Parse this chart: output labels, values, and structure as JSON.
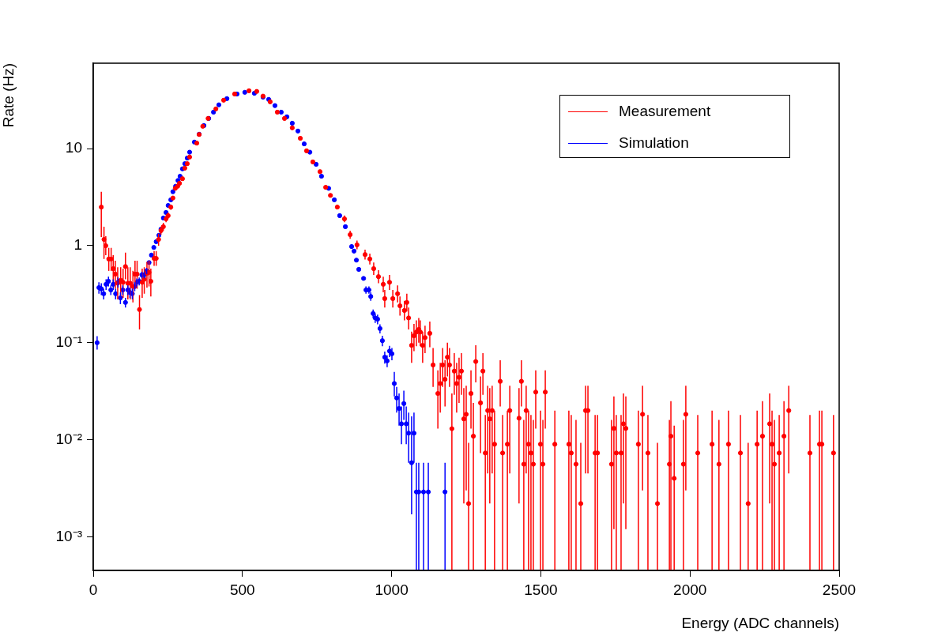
{
  "chart_data": {
    "type": "scatter",
    "xlabel": "Energy (ADC channels)",
    "ylabel": "Rate (Hz)",
    "log": "y",
    "grid": false,
    "legend": "top right",
    "marker": "circle",
    "xlim": [
      0,
      2500
    ],
    "xticks": [
      0,
      500,
      1000,
      1500,
      2000,
      2500
    ],
    "ylim": [
      0.00045,
      76
    ],
    "yticks": [
      {
        "value": 0.001,
        "label": "10⁻³"
      },
      {
        "value": 0.01,
        "label": "10⁻²"
      },
      {
        "value": 0.1,
        "label": "10⁻¹"
      },
      1,
      10
    ],
    "series": [
      {
        "name": "Measurement",
        "color": "#ff0000",
        "x": [
          27,
          36,
          42,
          52,
          60,
          67,
          74,
          82,
          92,
          100,
          108,
          116,
          124,
          133,
          140,
          147,
          155,
          164,
          171,
          180,
          187,
          193,
          204,
          211,
          219,
          227,
          235,
          244,
          251,
          260,
          267,
          275,
          283,
          289,
          299,
          307,
          315,
          323,
          347,
          355,
          367,
          385,
          411,
          437,
          474,
          522,
          548,
          569,
          593,
          617,
          641,
          667,
          694,
          715,
          736,
          760,
          779,
          795,
          818,
          842,
          861,
          884,
          911,
          927,
          940,
          956,
          972,
          977,
          993,
          1004,
          1020,
          1028,
          1043,
          1051,
          1057,
          1067,
          1075,
          1083,
          1091,
          1096,
          1104,
          1112,
          1128,
          1139,
          1155,
          1163,
          1171,
          1179,
          1187,
          1194,
          1202,
          1210,
          1218,
          1226,
          1234,
          1242,
          1250,
          1258,
          1266,
          1274,
          1282,
          1298,
          1306,
          1314,
          1322,
          1329,
          1337,
          1345,
          1364,
          1372,
          1388,
          1396,
          1427,
          1435,
          1443,
          1451,
          1459,
          1467,
          1475,
          1483,
          1499,
          1507,
          1515,
          1547,
          1594,
          1602,
          1618,
          1634,
          1650,
          1658,
          1682,
          1690,
          1737,
          1745,
          1753,
          1769,
          1777,
          1785,
          1827,
          1841,
          1859,
          1891,
          1931,
          1936,
          1947,
          1978,
          1986,
          2026,
          2074,
          2097,
          2129,
          2169,
          2195,
          2225,
          2243,
          2267,
          2275,
          2283,
          2299,
          2315,
          2331,
          2402,
          2434,
          2442,
          2481
        ],
        "values": [
          2.5,
          1.16,
          1.0,
          0.73,
          0.73,
          0.58,
          0.51,
          0.41,
          0.44,
          0.42,
          0.61,
          0.41,
          0.41,
          0.38,
          0.51,
          0.51,
          0.22,
          0.42,
          0.45,
          0.52,
          0.53,
          0.43,
          0.74,
          0.74,
          1.16,
          1.43,
          1.57,
          1.89,
          2.04,
          2.5,
          3.1,
          3.9,
          4.1,
          4.4,
          4.9,
          6.3,
          7.0,
          8.2,
          11.4,
          14,
          17,
          20.5,
          25.7,
          31.6,
          36.6,
          39.5,
          38.9,
          34.8,
          30.4,
          23.8,
          20.5,
          16.4,
          12.8,
          9.5,
          7.3,
          5.8,
          4.0,
          3.3,
          2.5,
          1.89,
          1.3,
          1.02,
          0.81,
          0.73,
          0.58,
          0.48,
          0.4,
          0.285,
          0.42,
          0.285,
          0.32,
          0.24,
          0.215,
          0.26,
          0.18,
          0.094,
          0.118,
          0.129,
          0.137,
          0.129,
          0.094,
          0.113,
          0.125,
          0.059,
          0.03,
          0.038,
          0.059,
          0.042,
          0.071,
          0.059,
          0.013,
          0.051,
          0.038,
          0.044,
          0.051,
          0.0164,
          0.0183,
          0.0022,
          0.03,
          0.0109,
          0.064,
          0.024,
          0.051,
          0.0073,
          0.02,
          0.0164,
          0.02,
          0.009,
          0.04,
          0.0073,
          0.009,
          0.02,
          0.0167,
          0.04,
          0.0056,
          0.02,
          0.009,
          0.0073,
          0.0056,
          0.031,
          0.009,
          0.0056,
          0.031,
          0.009,
          0.009,
          0.0073,
          0.0056,
          0.0022,
          0.02,
          0.02,
          0.0073,
          0.0073,
          0.0056,
          0.0131,
          0.0073,
          0.0073,
          0.0146,
          0.0131,
          0.009,
          0.0183,
          0.0073,
          0.0022,
          0.0056,
          0.0109,
          0.004,
          0.0056,
          0.0183,
          0.0073,
          0.009,
          0.0056,
          0.009,
          0.0073,
          0.0022,
          0.009,
          0.0109,
          0.0146,
          0.009,
          0.0056,
          0.0073,
          0.0109,
          0.02,
          0.0073,
          0.009,
          0.009,
          0.0073
        ],
        "errors": [
          [
            1.23,
            3.6
          ],
          [
            0.73,
            1.57
          ],
          [
            0.8,
            1.25
          ],
          [
            0.55,
            0.95
          ],
          [
            0.55,
            0.95
          ],
          [
            0.42,
            0.8
          ],
          [
            0.36,
            0.7
          ],
          [
            0.28,
            0.6
          ],
          [
            0.3,
            0.6
          ],
          [
            0.29,
            0.58
          ],
          [
            0.45,
            0.85
          ],
          [
            0.28,
            0.6
          ],
          [
            0.28,
            0.6
          ],
          [
            0.26,
            0.55
          ],
          [
            0.36,
            0.7
          ],
          [
            0.36,
            0.7
          ],
          [
            0.137,
            0.31
          ],
          [
            0.29,
            0.58
          ],
          [
            0.32,
            0.6
          ],
          [
            0.37,
            0.68
          ],
          [
            0.38,
            0.7
          ],
          [
            0.3,
            0.58
          ],
          [
            0.62,
            0.88
          ],
          [
            0.62,
            0.88
          ],
          [
            1.0,
            1.33
          ],
          [
            1.3,
            1.57
          ],
          [
            1.43,
            1.72
          ],
          [
            1.75,
            2.05
          ],
          [
            1.9,
            2.2
          ],
          [
            2.35,
            2.65
          ],
          null,
          null,
          null,
          null,
          null,
          null,
          null,
          null,
          null,
          null,
          null,
          null,
          null,
          null,
          null,
          null,
          null,
          null,
          null,
          null,
          null,
          null,
          null,
          null,
          null,
          null,
          null,
          null,
          null,
          [
            1.75,
            2.05
          ],
          [
            1.18,
            1.43
          ],
          [
            0.92,
            1.13
          ],
          [
            0.72,
            0.91
          ],
          [
            0.64,
            0.83
          ],
          [
            0.5,
            0.67
          ],
          [
            0.41,
            0.56
          ],
          [
            0.33,
            0.48
          ],
          [
            0.23,
            0.35
          ],
          [
            0.35,
            0.5
          ],
          [
            0.23,
            0.35
          ],
          [
            0.26,
            0.39
          ],
          [
            0.19,
            0.3
          ],
          [
            0.17,
            0.27
          ],
          [
            0.21,
            0.32
          ],
          [
            0.137,
            0.23
          ],
          [
            0.062,
            0.13
          ],
          [
            0.082,
            0.156
          ],
          [
            0.092,
            0.17
          ],
          [
            0.1,
            0.18
          ],
          [
            0.092,
            0.17
          ],
          [
            0.062,
            0.13
          ],
          [
            0.078,
            0.15
          ],
          [
            0.09,
            0.165
          ],
          [
            0.035,
            0.088
          ],
          [
            0.013,
            0.052
          ],
          [
            0.019,
            0.062
          ],
          [
            0.035,
            0.088
          ],
          [
            0.022,
            0.066
          ],
          [
            0.045,
            0.1
          ],
          [
            0.035,
            0.088
          ],
          [
            0.00045,
            0.03
          ],
          [
            0.029,
            0.078
          ],
          [
            0.019,
            0.062
          ],
          [
            0.024,
            0.07
          ],
          [
            0.029,
            0.078
          ],
          [
            0.0022,
            0.034
          ],
          [
            0.003,
            0.036
          ],
          [
            0.00045,
            0.0093
          ],
          [
            0.013,
            0.052
          ],
          [
            0.00045,
            0.024
          ],
          [
            0.039,
            0.094
          ],
          [
            0.0073,
            0.045
          ],
          [
            0.029,
            0.078
          ],
          [
            0.00045,
            0.018
          ],
          [
            0.0045,
            0.036
          ],
          [
            0.0022,
            0.034
          ],
          [
            0.0045,
            0.036
          ],
          [
            0.00045,
            0.02
          ],
          [
            0.022,
            0.066
          ],
          [
            0.00045,
            0.018
          ],
          [
            0.00045,
            0.02
          ],
          [
            0.0045,
            0.036
          ],
          [
            0.0022,
            0.034
          ],
          [
            0.022,
            0.066
          ],
          [
            0.00045,
            0.016
          ],
          [
            0.0045,
            0.036
          ],
          [
            0.00045,
            0.02
          ],
          [
            0.00045,
            0.018
          ],
          [
            0.00045,
            0.016
          ],
          [
            0.013,
            0.052
          ],
          [
            0.00045,
            0.02
          ],
          [
            0.00045,
            0.016
          ],
          [
            0.013,
            0.052
          ],
          [
            0.00045,
            0.02
          ],
          [
            0.00045,
            0.02
          ],
          [
            0.00045,
            0.018
          ],
          [
            0.00045,
            0.016
          ],
          [
            0.00045,
            0.0093
          ],
          [
            0.0045,
            0.036
          ],
          [
            0.0045,
            0.036
          ],
          [
            0.00045,
            0.018
          ],
          [
            0.00045,
            0.018
          ],
          [
            0.00045,
            0.016
          ],
          [
            0.0012,
            0.028
          ],
          [
            0.00045,
            0.018
          ],
          [
            0.00045,
            0.018
          ],
          [
            0.0022,
            0.03
          ],
          [
            0.0012,
            0.028
          ],
          [
            0.00045,
            0.02
          ],
          [
            0.003,
            0.036
          ],
          [
            0.00045,
            0.018
          ],
          [
            0.00045,
            0.0093
          ],
          [
            0.00045,
            0.016
          ],
          [
            0.00045,
            0.025
          ],
          [
            0.00045,
            0.014
          ],
          [
            0.00045,
            0.016
          ],
          [
            0.003,
            0.036
          ],
          [
            0.00045,
            0.018
          ],
          [
            0.00045,
            0.02
          ],
          [
            0.00045,
            0.016
          ],
          [
            0.00045,
            0.02
          ],
          [
            0.00045,
            0.018
          ],
          [
            0.00045,
            0.0093
          ],
          [
            0.00045,
            0.02
          ],
          [
            0.00045,
            0.025
          ],
          [
            0.0022,
            0.03
          ],
          [
            0.00045,
            0.02
          ],
          [
            0.00045,
            0.016
          ],
          [
            0.00045,
            0.018
          ],
          [
            0.00045,
            0.025
          ],
          [
            0.0045,
            0.036
          ],
          [
            0.00045,
            0.018
          ],
          [
            0.00045,
            0.02
          ],
          [
            0.00045,
            0.02
          ],
          [
            0.00045,
            0.018
          ]
        ]
      },
      {
        "name": "Simulation",
        "color": "#0000ff",
        "x": [
          13,
          19,
          27,
          35,
          43,
          51,
          59,
          67,
          75,
          83,
          91,
          99,
          108,
          116,
          123,
          131,
          139,
          146,
          154,
          163,
          171,
          179,
          187,
          195,
          203,
          211,
          220,
          227,
          235,
          244,
          251,
          260,
          267,
          276,
          284,
          291,
          299,
          307,
          315,
          323,
          339,
          355,
          371,
          387,
          403,
          421,
          448,
          482,
          508,
          540,
          569,
          588,
          609,
          630,
          649,
          667,
          686,
          707,
          726,
          747,
          765,
          789,
          808,
          826,
          845,
          866,
          874,
          882,
          890,
          906,
          914,
          924,
          930,
          938,
          945,
          953,
          961,
          969,
          977,
          985,
          993,
          1001,
          1009,
          1017,
          1025,
          1033,
          1041,
          1049,
          1057,
          1067,
          1075,
          1083,
          1091,
          1107,
          1123,
          1179
        ],
        "values": [
          0.1,
          0.37,
          0.36,
          0.32,
          0.4,
          0.43,
          0.35,
          0.4,
          0.32,
          0.42,
          0.29,
          0.35,
          0.26,
          0.35,
          0.33,
          0.32,
          0.38,
          0.42,
          0.43,
          0.5,
          0.5,
          0.55,
          0.67,
          0.8,
          0.96,
          1.1,
          1.28,
          1.48,
          1.93,
          2.2,
          2.6,
          2.97,
          3.6,
          4.1,
          4.7,
          5.2,
          6.2,
          7.0,
          8.0,
          9.2,
          11.7,
          14.1,
          17.3,
          20.5,
          23.8,
          28.3,
          32.8,
          36.6,
          38.1,
          37.2,
          34.0,
          32.2,
          27.8,
          23.8,
          21.3,
          18.3,
          15.2,
          11.2,
          9.2,
          6.9,
          5.2,
          3.9,
          2.97,
          2.04,
          1.57,
          0.98,
          0.88,
          0.71,
          0.57,
          0.46,
          0.35,
          0.35,
          0.3,
          0.2,
          0.18,
          0.175,
          0.14,
          0.105,
          0.071,
          0.065,
          0.082,
          0.077,
          0.038,
          0.027,
          0.021,
          0.0146,
          0.0236,
          0.0146,
          0.0117,
          0.0058,
          0.0117,
          0.0029,
          0.0029,
          0.0029,
          0.0029,
          0.0029
        ],
        "errors": [
          [
            0.085,
            0.117
          ],
          [
            0.32,
            0.42
          ],
          [
            0.31,
            0.41
          ],
          [
            0.28,
            0.36
          ],
          [
            0.35,
            0.45
          ],
          [
            0.38,
            0.48
          ],
          [
            0.31,
            0.39
          ],
          [
            0.35,
            0.45
          ],
          [
            0.28,
            0.36
          ],
          [
            0.37,
            0.47
          ],
          [
            0.25,
            0.33
          ],
          [
            0.31,
            0.39
          ],
          [
            0.23,
            0.29
          ],
          [
            0.31,
            0.39
          ],
          [
            0.29,
            0.37
          ],
          [
            0.28,
            0.36
          ],
          [
            0.34,
            0.42
          ],
          [
            0.38,
            0.46
          ],
          [
            0.39,
            0.47
          ],
          [
            0.46,
            0.54
          ],
          [
            0.46,
            0.54
          ],
          [
            0.51,
            0.59
          ],
          null,
          null,
          null,
          null,
          null,
          null,
          null,
          null,
          null,
          null,
          null,
          null,
          null,
          null,
          null,
          null,
          null,
          null,
          null,
          null,
          null,
          null,
          null,
          null,
          null,
          null,
          null,
          null,
          null,
          null,
          null,
          null,
          null,
          null,
          null,
          null,
          null,
          null,
          null,
          null,
          null,
          null,
          null,
          null,
          null,
          null,
          null,
          null,
          [
            0.32,
            0.38
          ],
          [
            0.32,
            0.38
          ],
          [
            0.27,
            0.33
          ],
          [
            0.18,
            0.22
          ],
          [
            0.16,
            0.2
          ],
          [
            0.155,
            0.195
          ],
          [
            0.125,
            0.155
          ],
          [
            0.092,
            0.118
          ],
          [
            0.061,
            0.081
          ],
          [
            0.056,
            0.074
          ],
          [
            0.071,
            0.093
          ],
          [
            0.066,
            0.088
          ],
          [
            0.028,
            0.05
          ],
          [
            0.019,
            0.035
          ],
          [
            0.014,
            0.03
          ],
          [
            0.009,
            0.022
          ],
          [
            0.016,
            0.032
          ],
          [
            0.009,
            0.022
          ],
          [
            0.0058,
            0.019
          ],
          [
            0.0017,
            0.0174
          ],
          [
            0.0058,
            0.019
          ],
          [
            0.00045,
            0.0058
          ],
          [
            0.00045,
            0.0058
          ],
          [
            0.00045,
            0.0058
          ],
          [
            0.00045,
            0.0058
          ],
          [
            0.00045,
            0.0058
          ]
        ]
      }
    ]
  }
}
